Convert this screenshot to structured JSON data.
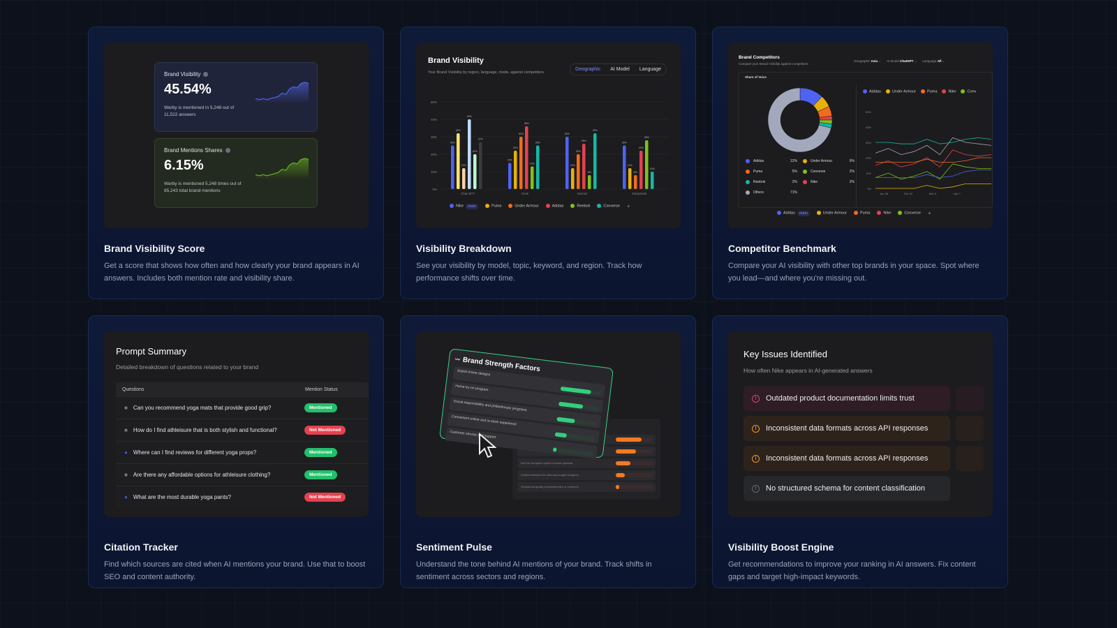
{
  "cards": [
    {
      "title": "Brand Visibility Score",
      "description": "Get a score that shows how often and how clearly your brand appears in AI answers. Includes both mention rate and visibility share.",
      "widgets": [
        {
          "title": "Brand Visibility",
          "value": "45.54%",
          "detail": "Warby is mentioned in 5,248 out of 11,522 answers",
          "color": "#4f63e8",
          "sparkline": [
            3,
            2,
            3,
            2,
            3,
            4,
            5,
            8,
            7,
            12,
            14,
            13,
            17,
            18,
            17
          ]
        },
        {
          "title": "Brand Mentions Shares",
          "value": "6.15%",
          "detail": "Warby is mentioned 5,248 times out of 85,243 total brand mentions",
          "color": "#6ab01e",
          "sparkline": [
            3,
            2,
            3,
            2,
            3,
            4,
            5,
            8,
            7,
            12,
            14,
            13,
            17,
            18,
            17
          ]
        }
      ]
    },
    {
      "title": "Visibility Breakdown",
      "description": "See your visibility by model, topic, keyword, and region. Track how performance shifts over time."
    },
    {
      "title": "Competitor Benchmark",
      "description": "Compare your AI visibility with other top brands in your space. Spot where you lead—and where you're missing out."
    },
    {
      "title": "Citation Tracker",
      "description": "Find which sources are cited when AI mentions your brand. Use that to boost SEO and content authority."
    },
    {
      "title": "Sentiment Pulse",
      "description": "Understand the tone behind AI mentions of your brand. Track shifts in sentiment across sectors and regions."
    },
    {
      "title": "Visibility Boost Engine",
      "description": "Get recommendations to improve your ranking in AI answers. Fix content gaps and target high-impact keywords."
    }
  ],
  "breakdown": {
    "title": "Brand Visibility",
    "subtitle": "Your Brand Visibility by region, language, mode, against competitors",
    "tabs": [
      "Geographic",
      "AI Model",
      "Language"
    ],
    "active_tab": "Geographic",
    "legend": [
      {
        "name": "Nike",
        "badge": "main",
        "color": "#4f63f0"
      },
      {
        "name": "Puma",
        "color": "#e8b00c"
      },
      {
        "name": "Under Armour",
        "color": "#f26b1d"
      },
      {
        "name": "Adidas",
        "color": "#e5414f"
      },
      {
        "name": "Reebok",
        "color": "#7ec21a"
      },
      {
        "name": "Converse",
        "color": "#14b8a6"
      }
    ]
  },
  "competitors": {
    "title": "Brand Competitors",
    "subtitle": "Compare your Brand Visibility against competitors",
    "filters": [
      {
        "label": "Geographic",
        "value": "Asia"
      },
      {
        "label": "AI Model",
        "value": "ChatGPT"
      },
      {
        "label": "Language",
        "value": "All"
      }
    ],
    "section": "Share of Voice",
    "bottom_legend": [
      {
        "name": "Adidas",
        "badge": "main",
        "color": "#4f63f0"
      },
      {
        "name": "Under Armour",
        "color": "#e8b00c"
      },
      {
        "name": "Puma",
        "color": "#f26b1d"
      },
      {
        "name": "Nike",
        "color": "#e5414f"
      },
      {
        "name": "Converse",
        "color": "#7ec21a"
      }
    ]
  },
  "chart_data": [
    {
      "type": "bar",
      "categories": [
        "Chat GPT",
        "Grok",
        "Gemini",
        "DeepSeek"
      ],
      "ylim": [
        0,
        50
      ],
      "yticks": [
        "0%",
        "10%",
        "20%",
        "30%",
        "40%",
        "50%"
      ],
      "grid": true,
      "legend": "bottom",
      "series_colors": [
        [
          "#4f63f0",
          "#fde36b",
          "#fdd1a5",
          "#bfdbfe",
          "#bbf7d0",
          "#3a3a3f"
        ],
        [
          "#4f63f0",
          "#e8b00c",
          "#f26b1d",
          "#e5414f",
          "#7ec21a",
          "#14b8a6"
        ],
        [
          "#4f63f0",
          "#e8b00c",
          "#f26b1d",
          "#e5414f",
          "#7ec21a",
          "#14b8a6"
        ],
        [
          "#4f63f0",
          "#e8b00c",
          "#f26b1d",
          "#e5414f",
          "#7ec21a",
          "#14b8a6"
        ]
      ],
      "values": [
        [
          25,
          32,
          12,
          40,
          20,
          27
        ],
        [
          15,
          22,
          30,
          36,
          13,
          25
        ],
        [
          30,
          12,
          20,
          26,
          8,
          32
        ],
        [
          25,
          12,
          8,
          22,
          28,
          10
        ]
      ]
    },
    {
      "type": "pie",
      "title": "Share of Voice",
      "slices": [
        {
          "name": "Adidas",
          "value": 12,
          "color": "#4f63f0"
        },
        {
          "name": "Under Armour",
          "value": 6,
          "color": "#e8b00c"
        },
        {
          "name": "Puma",
          "value": 5,
          "color": "#f26b1d"
        },
        {
          "name": "Nike",
          "value": 2,
          "color": "#e5414f"
        },
        {
          "name": "Converse",
          "value": 2,
          "color": "#7ec21a"
        },
        {
          "name": "Reebok",
          "value": 2,
          "color": "#14b8a6"
        },
        {
          "name": "Others",
          "value": 71,
          "color": "#a3a8bd"
        }
      ],
      "legend_order": [
        "Adidas",
        "Under Armour",
        "Puma",
        "Converse",
        "Reebok",
        "Nike",
        "Others"
      ]
    },
    {
      "type": "line",
      "xticks": [
        "Jan 28",
        "Feb 20",
        "Mar 5",
        "Apr 7"
      ],
      "ylim": [
        0,
        50
      ],
      "yticks": [
        "0%",
        "10%",
        "20%",
        "30%",
        "40%",
        "50%"
      ],
      "legend": "top",
      "series": [
        {
          "name": "",
          "color": "#14b8a6",
          "values": [
            30,
            30,
            29,
            29,
            32,
            29,
            30,
            32,
            33,
            32
          ]
        },
        {
          "name": "",
          "color": "#a3a8bd",
          "values": [
            23,
            26,
            22,
            24,
            28,
            22,
            33,
            30,
            29,
            28
          ]
        },
        {
          "name": "Nike",
          "color": "#e5414f",
          "values": [
            15,
            18,
            14,
            16,
            20,
            14,
            25,
            22,
            21,
            22
          ]
        },
        {
          "name": "Puma",
          "color": "#f26b1d",
          "values": [
            17,
            17,
            17,
            17,
            19,
            17,
            17,
            18,
            20,
            20
          ]
        },
        {
          "name": "Converse",
          "color": "#7ec21a",
          "values": [
            7,
            10,
            6,
            8,
            11,
            6,
            16,
            14,
            13,
            13
          ]
        },
        {
          "name": "Adidas",
          "color": "#4f63f0",
          "values": [
            7,
            7,
            7,
            7,
            9,
            7,
            8,
            11,
            12,
            12
          ]
        },
        {
          "name": "Under Armour",
          "color": "#e8b00c",
          "values": [
            0,
            0,
            0,
            0,
            2,
            0,
            1,
            3,
            3,
            3
          ]
        }
      ],
      "top_legend": [
        "Adidas",
        "Under Armour",
        "Puma",
        "Nike",
        "Conv"
      ]
    }
  ],
  "prompts": {
    "title": "Prompt Summary",
    "subtitle": "Detailed breakdown of questions related to your brand",
    "columns": [
      "Questions",
      "Mention Status"
    ],
    "rows": [
      {
        "icon": "robot",
        "question": "Can you recommend yoga mats that provide good grip?",
        "status": "Mentioned"
      },
      {
        "icon": "robot",
        "question": "How do I find athleisure that is both stylish and functional?",
        "status": "Not Mentioned"
      },
      {
        "icon": "user",
        "question": "Where can I find reviews for different yoga props?",
        "status": "Mentioned"
      },
      {
        "icon": "robot",
        "question": "Are there any affordable options for athleisure clothing?",
        "status": "Mentioned"
      },
      {
        "icon": "user",
        "question": "What are the most durable yoga pants?",
        "status": "Not Mentioned"
      }
    ],
    "colors": {
      "Mentioned": "#22c06b",
      "Not Mentioned": "#e5414f"
    }
  },
  "sentiment": {
    "title": "Brand Strength Factors",
    "factors": [
      {
        "label": "Stylish frame designs",
        "level": 0.75
      },
      {
        "label": "Home try-on program",
        "level": 0.6
      },
      {
        "label": "Social responsibility and philanthropic programs",
        "level": 0.45
      },
      {
        "label": "Convenient online and in-store experience",
        "level": 0.3
      },
      {
        "label": "Customer service and support",
        "level": 0.08
      }
    ],
    "weaknesses": [
      {
        "label": "",
        "level": 0.72
      },
      {
        "label": "",
        "level": 0.55
      },
      {
        "label": "Not the cheapest option for basic eyewear",
        "level": 0.4
      },
      {
        "label": "Limited selection for ultra-low-budget shoppers",
        "level": 0.25
      },
      {
        "label": "Occasional quality inconsistencies or concerns",
        "level": 0.1
      }
    ]
  },
  "issues": {
    "title": "Key Issues Identified",
    "subtitle": "How often Nike appears in AI-generated answers",
    "items": [
      {
        "text": "Outdated product documentation limits trust",
        "severity": "high",
        "color": "#e0457b",
        "bg": "#2e1d24"
      },
      {
        "text": "Inconsistent data formats across API responses",
        "severity": "medium",
        "color": "#f0962e",
        "bg": "#2e231b"
      },
      {
        "text": "Inconsistent data formats across API responses",
        "severity": "medium",
        "color": "#f0962e",
        "bg": "#2e231b"
      },
      {
        "text": "No structured schema for content classification",
        "severity": "low",
        "color": "#666a72",
        "bg": "#26272b"
      }
    ]
  }
}
